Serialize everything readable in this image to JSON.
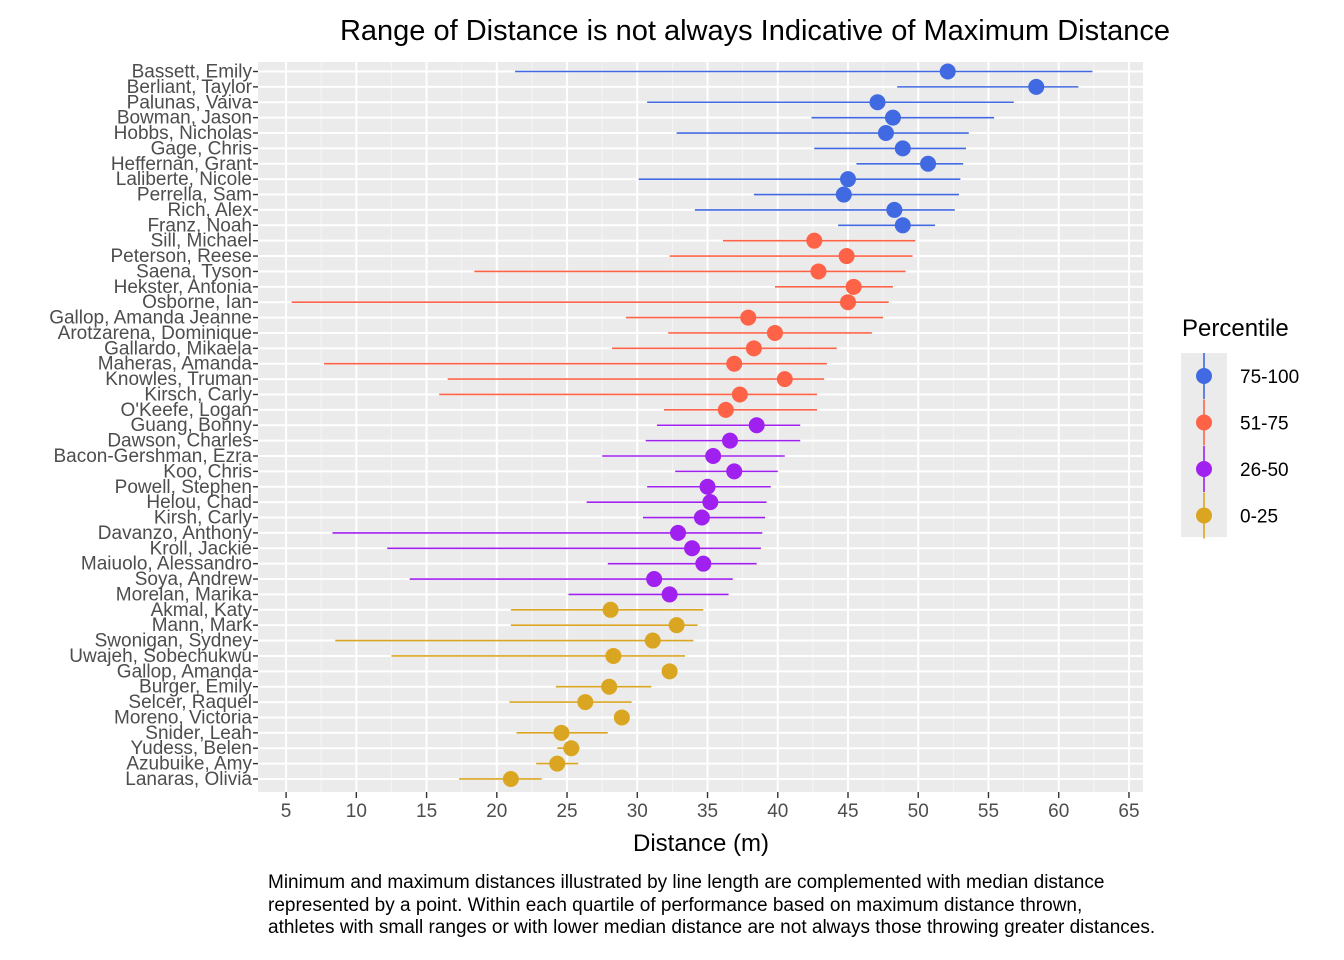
{
  "chart_data": {
    "type": "errorbar-dot",
    "title": "Range of Distance is not always Indicative of Maximum Distance",
    "xlabel": "Distance (m)",
    "ylabel": "",
    "xlim": [
      3,
      66
    ],
    "xticks": [
      5,
      10,
      15,
      20,
      25,
      30,
      35,
      40,
      45,
      50,
      55,
      60,
      65
    ],
    "grid": true,
    "legend": {
      "title": "Percentile",
      "placement": "right",
      "entries": [
        {
          "label": "75-100",
          "color": "#4169E1"
        },
        {
          "label": "51-75",
          "color": "#FF6347"
        },
        {
          "label": "26-50",
          "color": "#A020F0"
        },
        {
          "label": "0-25",
          "color": "#DAA520"
        }
      ]
    },
    "athletes": [
      {
        "name": "Bassett, Emily",
        "min": 21.3,
        "median": 52.1,
        "max": 62.4,
        "group": "75-100"
      },
      {
        "name": "Berliant, Taylor",
        "min": 48.5,
        "median": 58.4,
        "max": 61.4,
        "group": "75-100"
      },
      {
        "name": "Palunas, Vaiva",
        "min": 30.7,
        "median": 47.1,
        "max": 56.8,
        "group": "75-100"
      },
      {
        "name": "Bowman, Jason",
        "min": 42.4,
        "median": 48.2,
        "max": 55.4,
        "group": "75-100"
      },
      {
        "name": "Hobbs, Nicholas",
        "min": 32.8,
        "median": 47.7,
        "max": 53.6,
        "group": "75-100"
      },
      {
        "name": "Gage, Chris",
        "min": 42.6,
        "median": 48.9,
        "max": 53.4,
        "group": "75-100"
      },
      {
        "name": "Heffernan, Grant",
        "min": 45.6,
        "median": 50.7,
        "max": 53.2,
        "group": "75-100"
      },
      {
        "name": "Laliberte, Nicole",
        "min": 30.1,
        "median": 45.0,
        "max": 53.0,
        "group": "75-100"
      },
      {
        "name": "Perrella, Sam",
        "min": 38.3,
        "median": 44.7,
        "max": 52.9,
        "group": "75-100"
      },
      {
        "name": "Rich, Alex",
        "min": 34.1,
        "median": 48.3,
        "max": 52.6,
        "group": "75-100"
      },
      {
        "name": "Franz, Noah",
        "min": 44.3,
        "median": 48.9,
        "max": 51.2,
        "group": "75-100"
      },
      {
        "name": "Sill, Michael",
        "min": 36.1,
        "median": 42.6,
        "max": 49.8,
        "group": "51-75"
      },
      {
        "name": "Peterson, Reese",
        "min": 32.3,
        "median": 44.9,
        "max": 49.6,
        "group": "51-75"
      },
      {
        "name": "Saena, Tyson",
        "min": 18.4,
        "median": 42.9,
        "max": 49.1,
        "group": "51-75"
      },
      {
        "name": "Hekster, Antonia",
        "min": 39.8,
        "median": 45.4,
        "max": 48.2,
        "group": "51-75"
      },
      {
        "name": "Osborne, Ian",
        "min": 5.4,
        "median": 45.0,
        "max": 47.9,
        "group": "51-75"
      },
      {
        "name": "Gallop, Amanda Jeanne",
        "min": 29.2,
        "median": 37.9,
        "max": 47.5,
        "group": "51-75"
      },
      {
        "name": "Arotzarena, Dominique",
        "min": 32.2,
        "median": 39.8,
        "max": 46.7,
        "group": "51-75"
      },
      {
        "name": "Gallardo, Mikaela",
        "min": 28.2,
        "median": 38.3,
        "max": 44.2,
        "group": "51-75"
      },
      {
        "name": "Maheras, Amanda",
        "min": 7.7,
        "median": 36.9,
        "max": 43.5,
        "group": "51-75"
      },
      {
        "name": "Knowles, Truman",
        "min": 16.5,
        "median": 40.5,
        "max": 43.3,
        "group": "51-75"
      },
      {
        "name": "Kirsch, Carly",
        "min": 15.9,
        "median": 37.3,
        "max": 42.8,
        "group": "51-75"
      },
      {
        "name": "O'Keefe, Logan",
        "min": 31.9,
        "median": 36.3,
        "max": 42.8,
        "group": "51-75"
      },
      {
        "name": "Guang, Bonny",
        "min": 31.4,
        "median": 38.5,
        "max": 41.6,
        "group": "26-50"
      },
      {
        "name": "Dawson, Charles",
        "min": 30.6,
        "median": 36.6,
        "max": 41.6,
        "group": "26-50"
      },
      {
        "name": "Bacon-Gershman, Ezra",
        "min": 27.5,
        "median": 35.4,
        "max": 40.5,
        "group": "26-50"
      },
      {
        "name": "Koo, Chris",
        "min": 32.7,
        "median": 36.9,
        "max": 40.0,
        "group": "26-50"
      },
      {
        "name": "Powell, Stephen",
        "min": 30.7,
        "median": 35.0,
        "max": 39.5,
        "group": "26-50"
      },
      {
        "name": "Helou, Chad",
        "min": 26.4,
        "median": 35.2,
        "max": 39.2,
        "group": "26-50"
      },
      {
        "name": "Kirsh, Carly",
        "min": 30.4,
        "median": 34.6,
        "max": 39.1,
        "group": "26-50"
      },
      {
        "name": "Davanzo, Anthony",
        "min": 8.3,
        "median": 32.9,
        "max": 38.9,
        "group": "26-50"
      },
      {
        "name": "Kroll, Jackie",
        "min": 12.2,
        "median": 33.9,
        "max": 38.8,
        "group": "26-50"
      },
      {
        "name": "Maiuolo, Alessandro",
        "min": 27.9,
        "median": 34.7,
        "max": 38.5,
        "group": "26-50"
      },
      {
        "name": "Soya, Andrew",
        "min": 13.8,
        "median": 31.2,
        "max": 36.8,
        "group": "26-50"
      },
      {
        "name": "Morelan, Marika",
        "min": 25.1,
        "median": 32.3,
        "max": 36.5,
        "group": "26-50"
      },
      {
        "name": "Akmal, Katy",
        "min": 21.0,
        "median": 28.1,
        "max": 34.7,
        "group": "0-25"
      },
      {
        "name": "Mann, Mark",
        "min": 21.0,
        "median": 32.8,
        "max": 34.3,
        "group": "0-25"
      },
      {
        "name": "Swonigan, Sydney",
        "min": 8.5,
        "median": 31.1,
        "max": 34.0,
        "group": "0-25"
      },
      {
        "name": "Uwajeh, Sobechukwu",
        "min": 12.5,
        "median": 28.3,
        "max": 33.4,
        "group": "0-25"
      },
      {
        "name": "Gallop, Amanda",
        "min": 32.3,
        "median": 32.3,
        "max": 32.3,
        "group": "0-25"
      },
      {
        "name": "Burger, Emily",
        "min": 24.2,
        "median": 28.0,
        "max": 31.0,
        "group": "0-25"
      },
      {
        "name": "Selcer, Raquel",
        "min": 20.9,
        "median": 26.3,
        "max": 29.6,
        "group": "0-25"
      },
      {
        "name": "Moreno, Victoria",
        "min": 28.9,
        "median": 28.9,
        "max": 28.9,
        "group": "0-25"
      },
      {
        "name": "Snider, Leah",
        "min": 21.4,
        "median": 24.6,
        "max": 27.9,
        "group": "0-25"
      },
      {
        "name": "Yudess, Belen",
        "min": 24.3,
        "median": 25.3,
        "max": 25.9,
        "group": "0-25"
      },
      {
        "name": "Azubuike, Amy",
        "min": 22.8,
        "median": 24.3,
        "max": 25.8,
        "group": "0-25"
      },
      {
        "name": "Lanaras, Olivia",
        "min": 17.3,
        "median": 21.0,
        "max": 23.2,
        "group": "0-25"
      }
    ],
    "caption": [
      "Minimum and maximum distances illustrated by line length are complemented with median distance",
      "represented by a point. Within each quartile of performance based on maximum distance thrown,",
      "athletes with small ranges or with lower median distance are not always those throwing greater distances."
    ]
  }
}
